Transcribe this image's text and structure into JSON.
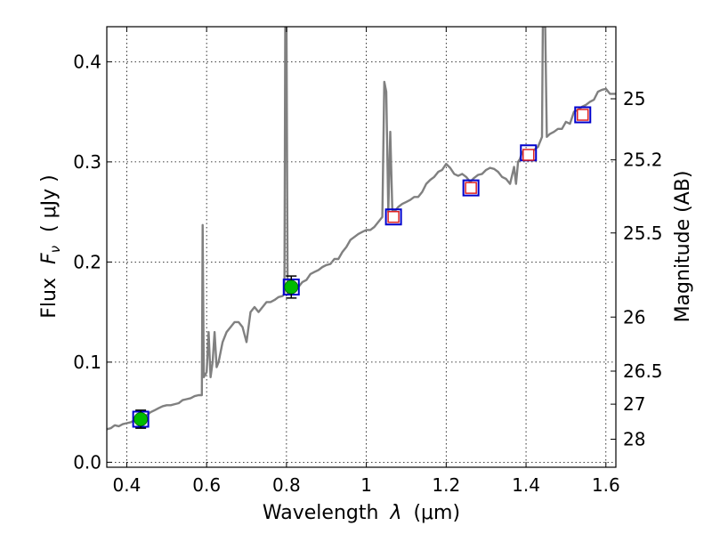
{
  "chart_data": {
    "type": "line",
    "xlabel": "Wavelength",
    "xlabel_symbol": "λ",
    "xlabel_unit": "(μm)",
    "ylabel": "Flux",
    "ylabel_symbol": "F",
    "ylabel_sub": "ν",
    "ylabel_unit": "( μJy )",
    "ylabel_right": "Magnitude (AB)",
    "xlim": [
      0.35,
      1.625
    ],
    "ylim": [
      -0.005,
      0.435
    ],
    "grid": true,
    "x_ticks": [
      0.4,
      0.6,
      0.8,
      1.0,
      1.2,
      1.4,
      1.6
    ],
    "x_tick_labels": [
      "0.4",
      "0.6",
      "0.8",
      "1",
      "1.2",
      "1.4",
      "1.6"
    ],
    "y_ticks": [
      0.0,
      0.1,
      0.2,
      0.3,
      0.4
    ],
    "y_tick_labels": [
      "0.0",
      "0.1",
      "0.2",
      "0.3",
      "0.4"
    ],
    "right_ticks": [
      {
        "label": "25",
        "flux": 0.363
      },
      {
        "label": "25.2",
        "flux": 0.302
      },
      {
        "label": "25.5",
        "flux": 0.229
      },
      {
        "label": "26",
        "flux": 0.145
      },
      {
        "label": "26.5",
        "flux": 0.091
      },
      {
        "label": "27",
        "flux": 0.058
      },
      {
        "label": "28",
        "flux": 0.023
      }
    ],
    "colors": {
      "spectrum": "#808080",
      "square": "#0000cc",
      "green_point": "#00bb00",
      "red_point": "#dd2222",
      "error_bar": "#000000"
    },
    "series": [
      {
        "kind": "spectrum",
        "points": [
          [
            0.35,
            0.033
          ],
          [
            0.36,
            0.034
          ],
          [
            0.37,
            0.037
          ],
          [
            0.38,
            0.036
          ],
          [
            0.39,
            0.038
          ],
          [
            0.4,
            0.039
          ],
          [
            0.41,
            0.04
          ],
          [
            0.42,
            0.042
          ],
          [
            0.43,
            0.043
          ],
          [
            0.44,
            0.046
          ],
          [
            0.45,
            0.047
          ],
          [
            0.46,
            0.05
          ],
          [
            0.47,
            0.052
          ],
          [
            0.48,
            0.054
          ],
          [
            0.49,
            0.056
          ],
          [
            0.5,
            0.057
          ],
          [
            0.51,
            0.057
          ],
          [
            0.52,
            0.058
          ],
          [
            0.53,
            0.059
          ],
          [
            0.54,
            0.062
          ],
          [
            0.55,
            0.063
          ],
          [
            0.56,
            0.064
          ],
          [
            0.57,
            0.066
          ],
          [
            0.58,
            0.067
          ],
          [
            0.588,
            0.067
          ],
          [
            0.59,
            0.237
          ],
          [
            0.593,
            0.085
          ],
          [
            0.6,
            0.09
          ],
          [
            0.605,
            0.13
          ],
          [
            0.61,
            0.085
          ],
          [
            0.615,
            0.1
          ],
          [
            0.62,
            0.13
          ],
          [
            0.625,
            0.095
          ],
          [
            0.63,
            0.1
          ],
          [
            0.64,
            0.12
          ],
          [
            0.65,
            0.13
          ],
          [
            0.66,
            0.135
          ],
          [
            0.67,
            0.14
          ],
          [
            0.68,
            0.14
          ],
          [
            0.69,
            0.135
          ],
          [
            0.7,
            0.12
          ],
          [
            0.71,
            0.15
          ],
          [
            0.72,
            0.155
          ],
          [
            0.73,
            0.15
          ],
          [
            0.74,
            0.155
          ],
          [
            0.75,
            0.16
          ],
          [
            0.76,
            0.16
          ],
          [
            0.77,
            0.162
          ],
          [
            0.78,
            0.165
          ],
          [
            0.79,
            0.166
          ],
          [
            0.795,
            0.168
          ],
          [
            0.797,
            0.435
          ],
          [
            0.8,
            0.435
          ],
          [
            0.803,
            0.168
          ],
          [
            0.81,
            0.17
          ],
          [
            0.82,
            0.172
          ],
          [
            0.83,
            0.175
          ],
          [
            0.84,
            0.18
          ],
          [
            0.85,
            0.182
          ],
          [
            0.86,
            0.188
          ],
          [
            0.87,
            0.19
          ],
          [
            0.88,
            0.192
          ],
          [
            0.89,
            0.195
          ],
          [
            0.9,
            0.197
          ],
          [
            0.91,
            0.198
          ],
          [
            0.92,
            0.203
          ],
          [
            0.93,
            0.203
          ],
          [
            0.94,
            0.21
          ],
          [
            0.95,
            0.215
          ],
          [
            0.96,
            0.222
          ],
          [
            0.97,
            0.225
          ],
          [
            0.98,
            0.228
          ],
          [
            0.99,
            0.23
          ],
          [
            1.0,
            0.232
          ],
          [
            1.01,
            0.232
          ],
          [
            1.02,
            0.235
          ],
          [
            1.03,
            0.24
          ],
          [
            1.04,
            0.245
          ],
          [
            1.045,
            0.38
          ],
          [
            1.05,
            0.37
          ],
          [
            1.055,
            0.25
          ],
          [
            1.06,
            0.33
          ],
          [
            1.065,
            0.252
          ],
          [
            1.07,
            0.25
          ],
          [
            1.08,
            0.255
          ],
          [
            1.09,
            0.258
          ],
          [
            1.1,
            0.26
          ],
          [
            1.11,
            0.262
          ],
          [
            1.12,
            0.265
          ],
          [
            1.13,
            0.265
          ],
          [
            1.14,
            0.27
          ],
          [
            1.15,
            0.278
          ],
          [
            1.16,
            0.282
          ],
          [
            1.17,
            0.285
          ],
          [
            1.18,
            0.29
          ],
          [
            1.19,
            0.292
          ],
          [
            1.2,
            0.298
          ],
          [
            1.21,
            0.294
          ],
          [
            1.22,
            0.288
          ],
          [
            1.23,
            0.286
          ],
          [
            1.24,
            0.288
          ],
          [
            1.25,
            0.285
          ],
          [
            1.26,
            0.28
          ],
          [
            1.27,
            0.284
          ],
          [
            1.28,
            0.287
          ],
          [
            1.29,
            0.288
          ],
          [
            1.3,
            0.292
          ],
          [
            1.31,
            0.294
          ],
          [
            1.32,
            0.293
          ],
          [
            1.33,
            0.29
          ],
          [
            1.34,
            0.285
          ],
          [
            1.35,
            0.283
          ],
          [
            1.36,
            0.278
          ],
          [
            1.37,
            0.295
          ],
          [
            1.375,
            0.278
          ],
          [
            1.38,
            0.3
          ],
          [
            1.385,
            0.303
          ],
          [
            1.39,
            0.31
          ],
          [
            1.4,
            0.308
          ],
          [
            1.41,
            0.305
          ],
          [
            1.42,
            0.312
          ],
          [
            1.43,
            0.315
          ],
          [
            1.44,
            0.325
          ],
          [
            1.442,
            0.435
          ],
          [
            1.448,
            0.435
          ],
          [
            1.452,
            0.325
          ],
          [
            1.46,
            0.328
          ],
          [
            1.47,
            0.33
          ],
          [
            1.48,
            0.333
          ],
          [
            1.49,
            0.333
          ],
          [
            1.5,
            0.34
          ],
          [
            1.51,
            0.338
          ],
          [
            1.52,
            0.35
          ],
          [
            1.53,
            0.352
          ],
          [
            1.54,
            0.355
          ],
          [
            1.55,
            0.357
          ],
          [
            1.56,
            0.36
          ],
          [
            1.57,
            0.362
          ],
          [
            1.58,
            0.37
          ],
          [
            1.59,
            0.372
          ],
          [
            1.6,
            0.373
          ],
          [
            1.61,
            0.368
          ],
          [
            1.625,
            0.368
          ]
        ]
      },
      {
        "kind": "model-squares",
        "points": [
          [
            0.435,
            0.043
          ],
          [
            0.812,
            0.175
          ],
          [
            1.068,
            0.245
          ],
          [
            1.262,
            0.274
          ],
          [
            1.406,
            0.309
          ],
          [
            1.542,
            0.347
          ]
        ]
      },
      {
        "kind": "observed-green",
        "points": [
          {
            "x": 0.435,
            "y": 0.043,
            "err": 0.009
          },
          {
            "x": 0.812,
            "y": 0.175,
            "err": 0.011
          }
        ]
      },
      {
        "kind": "observed-red",
        "points": [
          {
            "x": 1.068,
            "y": 0.245
          },
          {
            "x": 1.262,
            "y": 0.274
          },
          {
            "x": 1.406,
            "y": 0.307
          },
          {
            "x": 1.542,
            "y": 0.347
          }
        ]
      }
    ]
  }
}
